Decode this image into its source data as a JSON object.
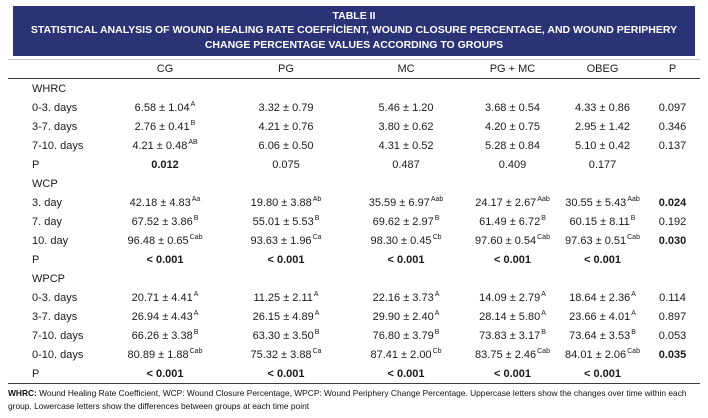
{
  "header": {
    "title_line1": "TABLE II",
    "title_line2": "STATISTICAL ANALYSIS OF WOUND HEALING RATE COEFFİCİENT, WOUND CLOSURE PERCENTAGE, AND WOUND PERIPHERY CHANGE PERCENTAGE VALUES ACCORDING TO GROUPS",
    "bg_color": "#2b3377",
    "text_color": "#ffffff"
  },
  "table": {
    "columns": [
      "",
      "CG",
      "PG",
      "MC",
      "PG + MC",
      "OBEG",
      "P"
    ],
    "sections": [
      {
        "name": "WHRC",
        "rows": [
          {
            "label": "0-3. days",
            "values": [
              {
                "v": "6.58 ± 1.04",
                "s": "A"
              },
              {
                "v": "3.32 ± 0.79",
                "s": ""
              },
              {
                "v": "5.46 ± 1.20",
                "s": ""
              },
              {
                "v": "3.68 ± 0.54",
                "s": ""
              },
              {
                "v": "4.33 ± 0.86",
                "s": ""
              }
            ],
            "p": {
              "v": "0.097",
              "b": false
            }
          },
          {
            "label": "3-7. days",
            "values": [
              {
                "v": "2.76 ± 0.41",
                "s": "B"
              },
              {
                "v": "4.21 ± 0.76",
                "s": ""
              },
              {
                "v": "3.80 ± 0.62",
                "s": ""
              },
              {
                "v": "4.20 ± 0.75",
                "s": ""
              },
              {
                "v": "2.95 ± 1.42",
                "s": ""
              }
            ],
            "p": {
              "v": "0.346",
              "b": false
            }
          },
          {
            "label": "7-10. days",
            "values": [
              {
                "v": "4.21 ± 0.48",
                "s": "AB"
              },
              {
                "v": "6.06 ± 0.50",
                "s": ""
              },
              {
                "v": "4.31 ± 0.52",
                "s": ""
              },
              {
                "v": "5.28 ± 0.84",
                "s": ""
              },
              {
                "v": "5.10 ± 0.42",
                "s": ""
              }
            ],
            "p": {
              "v": "0.137",
              "b": false
            }
          }
        ],
        "p_row": {
          "label": "P",
          "values": [
            {
              "v": "0.012",
              "b": true
            },
            {
              "v": "0.075",
              "b": false
            },
            {
              "v": "0.487",
              "b": false
            },
            {
              "v": "0.409",
              "b": false
            },
            {
              "v": "0.177",
              "b": false
            }
          ]
        }
      },
      {
        "name": "WCP",
        "rows": [
          {
            "label": "3. day",
            "values": [
              {
                "v": "42.18 ± 4.83",
                "s": "Aa"
              },
              {
                "v": "19.80 ± 3.88",
                "s": "Ab"
              },
              {
                "v": "35.59 ± 6.97",
                "s": "Aab"
              },
              {
                "v": "24.17 ± 2.67",
                "s": "Aab"
              },
              {
                "v": "30.55 ± 5.43",
                "s": "Aab"
              }
            ],
            "p": {
              "v": "0.024",
              "b": true
            }
          },
          {
            "label": "7. day",
            "values": [
              {
                "v": "67.52 ± 3.86",
                "s": "B"
              },
              {
                "v": "55.01 ± 5.53",
                "s": "B"
              },
              {
                "v": "69.62 ± 2.97",
                "s": "B"
              },
              {
                "v": "61.49 ± 6.72",
                "s": "B"
              },
              {
                "v": "60.15 ± 8.11",
                "s": "B"
              }
            ],
            "p": {
              "v": "0.192",
              "b": false
            }
          },
          {
            "label": "10. day",
            "values": [
              {
                "v": "96.48 ± 0.65",
                "s": "Cab"
              },
              {
                "v": "93.63 ± 1.96",
                "s": "Ca"
              },
              {
                "v": "98.30 ± 0.45",
                "s": "Cb"
              },
              {
                "v": "97.60 ± 0.54",
                "s": "Cab"
              },
              {
                "v": "97.63 ± 0.51",
                "s": "Cab"
              }
            ],
            "p": {
              "v": "0.030",
              "b": true
            }
          }
        ],
        "p_row": {
          "label": "P",
          "values": [
            {
              "v": "< 0.001",
              "b": true
            },
            {
              "v": "< 0.001",
              "b": true
            },
            {
              "v": "< 0.001",
              "b": true
            },
            {
              "v": "< 0.001",
              "b": true
            },
            {
              "v": "< 0.001",
              "b": true
            }
          ]
        }
      },
      {
        "name": "WPCP",
        "rows": [
          {
            "label": "0-3. days",
            "values": [
              {
                "v": "20.71 ± 4.41",
                "s": "A"
              },
              {
                "v": "11.25 ± 2.11",
                "s": "A"
              },
              {
                "v": "22.16 ± 3.73",
                "s": "A"
              },
              {
                "v": "14.09 ± 2.79",
                "s": "A"
              },
              {
                "v": "18.64 ± 2.36",
                "s": "A"
              }
            ],
            "p": {
              "v": "0.114",
              "b": false
            }
          },
          {
            "label": "3-7. days",
            "values": [
              {
                "v": "26.94 ± 4.43",
                "s": "A"
              },
              {
                "v": "26.15 ± 4.89",
                "s": "A"
              },
              {
                "v": "29.90 ± 2.40",
                "s": "A"
              },
              {
                "v": "28.14 ± 5.80",
                "s": "A"
              },
              {
                "v": "23.66 ± 4.01",
                "s": "A"
              }
            ],
            "p": {
              "v": "0.897",
              "b": false
            }
          },
          {
            "label": "7-10. days",
            "values": [
              {
                "v": "66.26 ± 3.38",
                "s": "B"
              },
              {
                "v": "63.30 ± 3.50",
                "s": "B"
              },
              {
                "v": "76.80 ± 3.79",
                "s": "B"
              },
              {
                "v": "73.83 ± 3.17",
                "s": "B"
              },
              {
                "v": "73.64 ± 3.53",
                "s": "B"
              }
            ],
            "p": {
              "v": "0.053",
              "b": false
            }
          },
          {
            "label": "0-10. days",
            "values": [
              {
                "v": "80.89 ± 1.88",
                "s": "Cab"
              },
              {
                "v": "75.32 ± 3.88",
                "s": "Ca"
              },
              {
                "v": "87.41 ± 2.00",
                "s": "Cb"
              },
              {
                "v": "83.75 ± 2.46",
                "s": "Cab"
              },
              {
                "v": "84.01 ± 2.06",
                "s": "Cab"
              }
            ],
            "p": {
              "v": "0.035",
              "b": true
            }
          }
        ],
        "p_row": {
          "label": "P",
          "values": [
            {
              "v": "< 0.001",
              "b": true
            },
            {
              "v": "< 0.001",
              "b": true
            },
            {
              "v": "< 0.001",
              "b": true
            },
            {
              "v": "< 0.001",
              "b": true
            },
            {
              "v": "< 0.001",
              "b": true
            }
          ]
        }
      }
    ]
  },
  "footnote": {
    "bold_prefix": "WHRC:",
    "text": " Wound Healing Rate Coefficient, WCP: Wound Closure Percentage, WPCP: Wound Periphery Change Percentage. Uppercase letters show the changes over time within each group. Lowercase letters show the differences between groups at each time point"
  }
}
